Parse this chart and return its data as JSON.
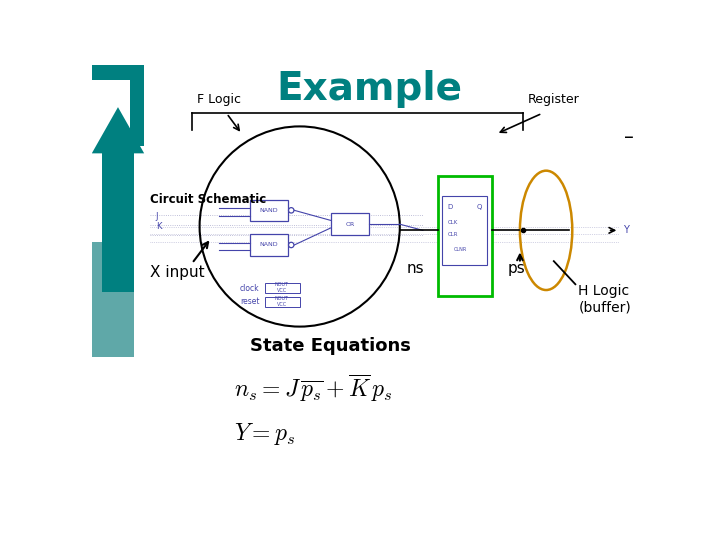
{
  "title": "Example",
  "title_color": "#008080",
  "title_fontsize": 28,
  "bg_color": "#ffffff",
  "teal_color": "#008080",
  "teal_light": "#70b0b0",
  "black": "#000000",
  "green_rect_color": "#00bb00",
  "orange_ellipse_color": "#cc8800",
  "gate_color": "#4444aa",
  "dot_color": "#aaaacc",
  "labels": {
    "F_Logic": "F Logic",
    "Register": "Register",
    "Circuit_Schematic": "Circuit Schematic",
    "X_input": "X input",
    "ns": "ns",
    "ps": "ps",
    "H_Logic": "H Logic\n(buffer)",
    "State_Equations": "State Equations"
  }
}
